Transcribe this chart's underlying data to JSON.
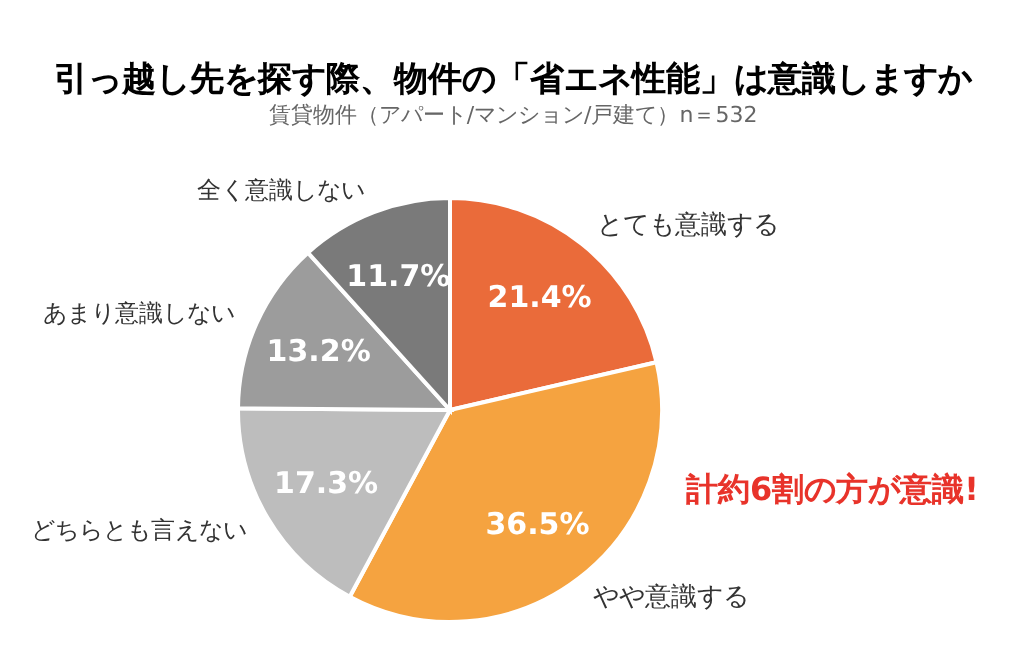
{
  "chart_data": {
    "type": "pie",
    "title": "引っ越し先を探す際、物件の「省エネ性能」は意識しますか",
    "subtitle": "賃貸物件（アパート/マンション/戸建て）n＝532",
    "categories": [
      "とても意識する",
      "やや意識する",
      "どちらとも言えない",
      "あまり意識しない",
      "全く意識しない"
    ],
    "values": [
      21.4,
      36.5,
      17.3,
      13.2,
      11.7
    ],
    "value_labels": [
      "21.4%",
      "36.5%",
      "17.3%",
      "13.2%",
      "11.7%"
    ],
    "colors": [
      "#ea6b3a",
      "#f5a340",
      "#bdbdbd",
      "#9c9c9c",
      "#7a7a7a"
    ],
    "annotations": [
      "計約6割の方が意識!"
    ]
  }
}
